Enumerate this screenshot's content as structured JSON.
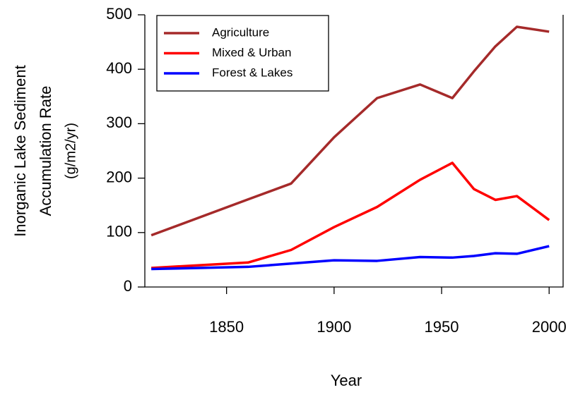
{
  "chart_data": {
    "type": "line",
    "xlabel": "Year",
    "ylabel": [
      "Inorganic Lake Sediment",
      "Accumulation Rate",
      "(g/m2/yr)"
    ],
    "x": [
      1815,
      1860,
      1880,
      1900,
      1920,
      1940,
      1955,
      1965,
      1975,
      1985,
      2000
    ],
    "series": [
      {
        "name": "Agriculture",
        "color": "#a52a2a",
        "values": [
          95,
          161,
          190,
          275,
          347,
          372,
          347,
          396,
          442,
          478,
          469
        ]
      },
      {
        "name": "Mixed & Urban",
        "color": "#ff0000",
        "values": [
          35,
          45,
          68,
          110,
          147,
          197,
          228,
          180,
          160,
          167,
          123
        ]
      },
      {
        "name": "Forest & Lakes",
        "color": "#0000ff",
        "values": [
          33,
          37,
          43,
          49,
          48,
          55,
          54,
          57,
          62,
          61,
          75
        ]
      }
    ],
    "xlim": [
      1812,
      2006.5
    ],
    "ylim": [
      0,
      500
    ],
    "xticks": [
      1850,
      1900,
      1950,
      2000
    ],
    "yticks": [
      0,
      100,
      200,
      300,
      400,
      500
    ],
    "legend": "top-left"
  }
}
